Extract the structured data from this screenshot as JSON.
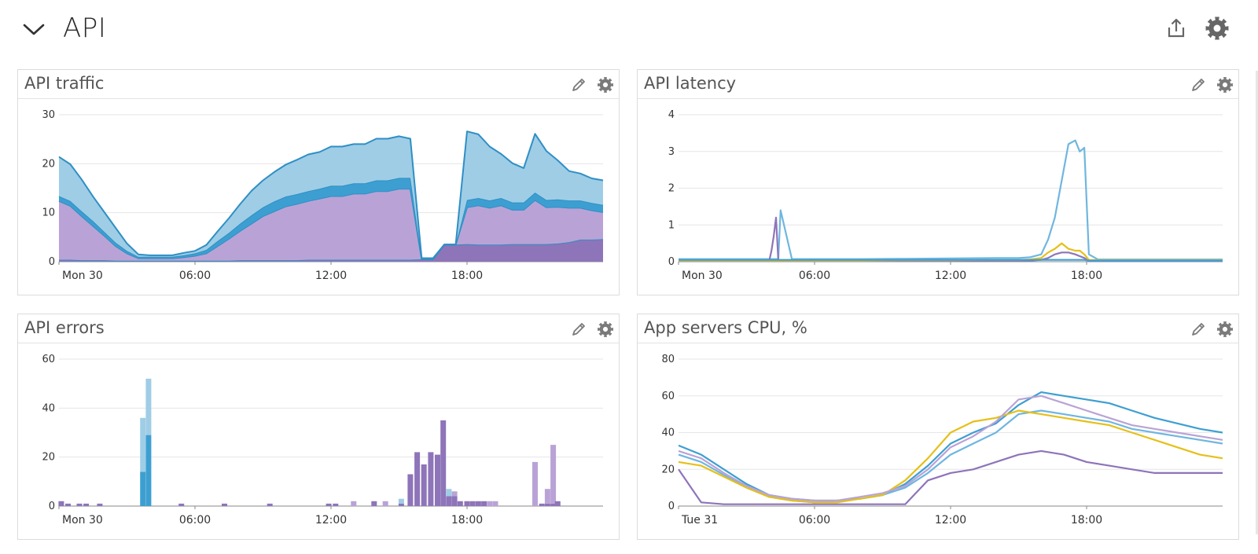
{
  "section": {
    "title": "API",
    "expanded": true
  },
  "header_actions": [
    {
      "icon": "share-icon"
    },
    {
      "icon": "gear-icon"
    }
  ],
  "widgets": [
    {
      "title": "API traffic",
      "chart_data": {
        "type": "area",
        "stacked": true,
        "x_ticks": [
          "Mon 30",
          "06:00",
          "12:00",
          "18:00"
        ],
        "y_ticks": [
          0,
          10,
          20,
          30
        ],
        "ylim": [
          0,
          30
        ],
        "grid": true,
        "x_hours": [
          0,
          0.5,
          1,
          1.5,
          2,
          2.5,
          3,
          3.5,
          4,
          4.5,
          5,
          5.5,
          6,
          6.5,
          7,
          7.5,
          8,
          8.5,
          9,
          9.5,
          10,
          10.5,
          11,
          11.5,
          12,
          12.5,
          13,
          13.5,
          14,
          14.5,
          15,
          15.5,
          16,
          16.5,
          17,
          17.5,
          18,
          18.5,
          19,
          19.5,
          20,
          20.5,
          21,
          21.5,
          22,
          22.5,
          23,
          23.5,
          24
        ],
        "series": [
          {
            "color": "#8e74b9",
            "values": [
              0.4,
              0.4,
              0.3,
              0.3,
              0.3,
              0.2,
              0.2,
              0.2,
              0.2,
              0.2,
              0.2,
              0.2,
              0.2,
              0.2,
              0.2,
              0.2,
              0.3,
              0.3,
              0.3,
              0.3,
              0.3,
              0.3,
              0.4,
              0.4,
              0.4,
              0.4,
              0.4,
              0.4,
              0.4,
              0.4,
              0.4,
              0.4,
              0.5,
              0.5,
              3.5,
              3.5,
              3.6,
              3.5,
              3.5,
              3.5,
              3.6,
              3.6,
              3.6,
              3.6,
              3.7,
              4,
              4.5,
              4.5,
              4.6
            ]
          },
          {
            "color": "#b9a3d6",
            "values": [
              12,
              11,
              9,
              7,
              5,
              3,
              1.5,
              0.5,
              0.5,
              0.5,
              0.5,
              0.7,
              1,
              1.5,
              3,
              4.5,
              6,
              7.5,
              9,
              10,
              11,
              11.5,
              12,
              12.5,
              13,
              13,
              13.5,
              13.5,
              14,
              14,
              14.5,
              14.5,
              0,
              0,
              0,
              0,
              7.5,
              8,
              7.5,
              8,
              7,
              7,
              9,
              7.5,
              7.5,
              7,
              6.5,
              6,
              5.5
            ]
          },
          {
            "color": "#3d9fd1",
            "values": [
              1,
              1,
              1,
              1,
              0.8,
              0.7,
              0.5,
              0.3,
              0.3,
              0.3,
              0.3,
              0.4,
              0.5,
              0.7,
              1,
              1.2,
              1.5,
              1.7,
              1.8,
              2,
              2,
              2,
              2,
              2,
              2.1,
              2.1,
              2.1,
              2.1,
              2.2,
              2.2,
              2.2,
              2.2,
              0.2,
              0.2,
              0,
              0,
              1.5,
              1.5,
              1.5,
              1.5,
              1.5,
              1.5,
              1.5,
              1.5,
              1.5,
              1.5,
              1.5,
              1.5,
              1.5
            ]
          },
          {
            "color": "#9fcde6",
            "values": [
              8,
              7.5,
              6.5,
              5,
              4,
              3,
              1.5,
              0.5,
              0.3,
              0.3,
              0.3,
              0.5,
              0.5,
              1,
              2,
              3,
              4,
              5,
              5.5,
              6,
              6.5,
              7,
              7.5,
              7.5,
              8,
              8,
              8,
              8,
              8.5,
              8.5,
              8.5,
              8,
              0,
              0,
              0,
              0,
              14,
              13,
              11,
              9,
              8,
              7,
              12,
              10,
              8,
              6,
              5.5,
              5,
              5
            ]
          }
        ]
      }
    },
    {
      "title": "API latency",
      "chart_data": {
        "type": "line",
        "x_ticks": [
          "Mon 30",
          "06:00",
          "12:00",
          "18:00"
        ],
        "y_ticks": [
          0,
          1,
          2,
          3,
          4
        ],
        "ylim": [
          0,
          4
        ],
        "grid": true,
        "x_hours": [
          0,
          1,
          2,
          3,
          4,
          4.1,
          4.2,
          4.3,
          4.4,
          4.5,
          5,
          6,
          8,
          10,
          12,
          14,
          15,
          15.5,
          16,
          16.3,
          16.6,
          16.9,
          17.2,
          17.5,
          17.7,
          17.9,
          18.1,
          18.5,
          20,
          22,
          24
        ],
        "series": [
          {
            "color": "#6fb6e0",
            "values": [
              0.07,
              0.07,
              0.07,
              0.07,
              0.07,
              0.07,
              0.07,
              0.07,
              0.07,
              1.4,
              0.07,
              0.07,
              0.07,
              0.08,
              0.09,
              0.1,
              0.1,
              0.12,
              0.2,
              0.6,
              1.2,
              2.2,
              3.2,
              3.3,
              3.0,
              3.1,
              0.2,
              0.06,
              0.06,
              0.06,
              0.06
            ]
          },
          {
            "color": "#8e74b9",
            "values": [
              0.02,
              0.02,
              0.02,
              0.02,
              0.02,
              0.3,
              0.7,
              1.2,
              0.03,
              0.02,
              0.02,
              0.02,
              0.02,
              0.02,
              0.02,
              0.03,
              0.03,
              0.03,
              0.05,
              0.1,
              0.2,
              0.25,
              0.25,
              0.2,
              0.15,
              0.1,
              0.02,
              0.02,
              0.02,
              0.02,
              0.02
            ]
          },
          {
            "color": "#e5c018",
            "values": [
              0.03,
              0.03,
              0.03,
              0.03,
              0.03,
              0.03,
              0.03,
              0.03,
              0.03,
              0.03,
              0.03,
              0.03,
              0.03,
              0.04,
              0.04,
              0.05,
              0.05,
              0.06,
              0.1,
              0.25,
              0.35,
              0.5,
              0.35,
              0.3,
              0.3,
              0.2,
              0.05,
              0.04,
              0.04,
              0.04,
              0.04
            ]
          },
          {
            "color": "#3d9fd1",
            "values": [
              0.05,
              0.05,
              0.05,
              0.05,
              0.05,
              0.05,
              0.05,
              0.05,
              0.05,
              0.05,
              0.05,
              0.05,
              0.05,
              0.05,
              0.05,
              0.05,
              0.05,
              0.05,
              0.05,
              0.05,
              0.05,
              0.05,
              0.05,
              0.05,
              0.05,
              0.05,
              0.03,
              0.03,
              0.03,
              0.03,
              0.03
            ]
          }
        ]
      }
    },
    {
      "title": "API errors",
      "chart_data": {
        "type": "bar",
        "stacked": true,
        "x_ticks": [
          "Mon 30",
          "06:00",
          "12:00",
          "18:00"
        ],
        "y_ticks": [
          0,
          20,
          40,
          60
        ],
        "ylim": [
          0,
          60
        ],
        "grid": true,
        "bar_hours": [
          0.1,
          0.4,
          0.9,
          1.2,
          1.8,
          3.7,
          3.95,
          5.4,
          7.3,
          9.3,
          11.9,
          12.2,
          13.0,
          13.9,
          14.4,
          15.1,
          15.5,
          15.8,
          16.1,
          16.4,
          16.7,
          16.95,
          17.2,
          17.45,
          17.7,
          18.0,
          18.25,
          18.5,
          18.75,
          19.0,
          19.25,
          21.0,
          21.3,
          21.55,
          21.8,
          22.0
        ],
        "series": [
          {
            "color": "#8e74b9",
            "values": [
              2,
              1,
              1,
              1,
              1,
              0,
              0,
              1,
              1,
              1,
              1,
              1,
              0,
              2,
              0,
              1,
              13,
              22,
              17,
              22,
              21,
              35,
              4,
              4,
              2,
              2,
              2,
              2,
              2,
              0,
              0,
              0,
              1,
              1,
              1,
              2
            ]
          },
          {
            "color": "#3d9fd1",
            "values": [
              0,
              0,
              0,
              0,
              0,
              14,
              29,
              0,
              0,
              0,
              0,
              0,
              0,
              0,
              0,
              0,
              0,
              0,
              0,
              0,
              0,
              0,
              0,
              0,
              0,
              0,
              0,
              0,
              0,
              0,
              0,
              0,
              0,
              0,
              0,
              0
            ]
          },
          {
            "color": "#9fcde6",
            "values": [
              0,
              0,
              0,
              0,
              0,
              22,
              23,
              0,
              0,
              0,
              0,
              0,
              0,
              0,
              0,
              2,
              0,
              0,
              0,
              0,
              0,
              0,
              3,
              0,
              0,
              0,
              0,
              0,
              0,
              0,
              0,
              0,
              0,
              0,
              0,
              0
            ]
          },
          {
            "color": "#b9a3d6",
            "values": [
              0,
              0,
              0,
              0,
              0,
              0,
              0,
              0,
              0,
              0,
              0,
              0,
              2,
              0,
              2,
              0,
              0,
              0,
              0,
              0,
              0,
              0,
              0,
              2,
              0,
              0,
              0,
              0,
              0,
              2,
              2,
              18,
              0,
              6,
              24,
              0
            ]
          }
        ]
      }
    },
    {
      "title": "App servers CPU, %",
      "chart_data": {
        "type": "line",
        "x_ticks": [
          "Tue 31",
          "06:00",
          "12:00",
          "18:00"
        ],
        "y_ticks": [
          0,
          20,
          40,
          60,
          80
        ],
        "ylim": [
          0,
          80
        ],
        "grid": true,
        "x_hours": [
          0,
          1,
          2,
          3,
          4,
          5,
          6,
          7,
          8,
          9,
          10,
          11,
          12,
          13,
          14,
          15,
          16,
          17,
          18,
          19,
          20,
          21,
          22,
          23,
          24
        ],
        "series": [
          {
            "color": "#3d9fd1",
            "values": [
              33,
              28,
              20,
              12,
              6,
              4,
              3,
              3,
              4,
              6,
              12,
              22,
              34,
              40,
              45,
              55,
              62,
              60,
              58,
              56,
              52,
              48,
              45,
              42,
              40
            ]
          },
          {
            "color": "#6fb6e0",
            "values": [
              28,
              24,
              17,
              10,
              5,
              3,
              2,
              3,
              4,
              6,
              10,
              18,
              28,
              34,
              40,
              50,
              52,
              50,
              48,
              46,
              42,
              40,
              38,
              36,
              34
            ]
          },
          {
            "color": "#e5c018",
            "values": [
              24,
              22,
              16,
              10,
              5,
              3,
              2,
              2,
              4,
              6,
              14,
              26,
              40,
              46,
              48,
              52,
              50,
              48,
              46,
              44,
              40,
              36,
              32,
              28,
              26
            ]
          },
          {
            "color": "#b9a3d6",
            "values": [
              30,
              26,
              18,
              11,
              6,
              4,
              3,
              3,
              5,
              7,
              11,
              20,
              32,
              38,
              46,
              58,
              60,
              56,
              52,
              48,
              44,
              42,
              40,
              38,
              36
            ]
          },
          {
            "color": "#8e74b9",
            "values": [
              20,
              2,
              1,
              1,
              1,
              1,
              1,
              1,
              1,
              1,
              1,
              14,
              18,
              20,
              24,
              28,
              30,
              28,
              24,
              22,
              20,
              18,
              18,
              18,
              18
            ]
          }
        ]
      }
    }
  ]
}
